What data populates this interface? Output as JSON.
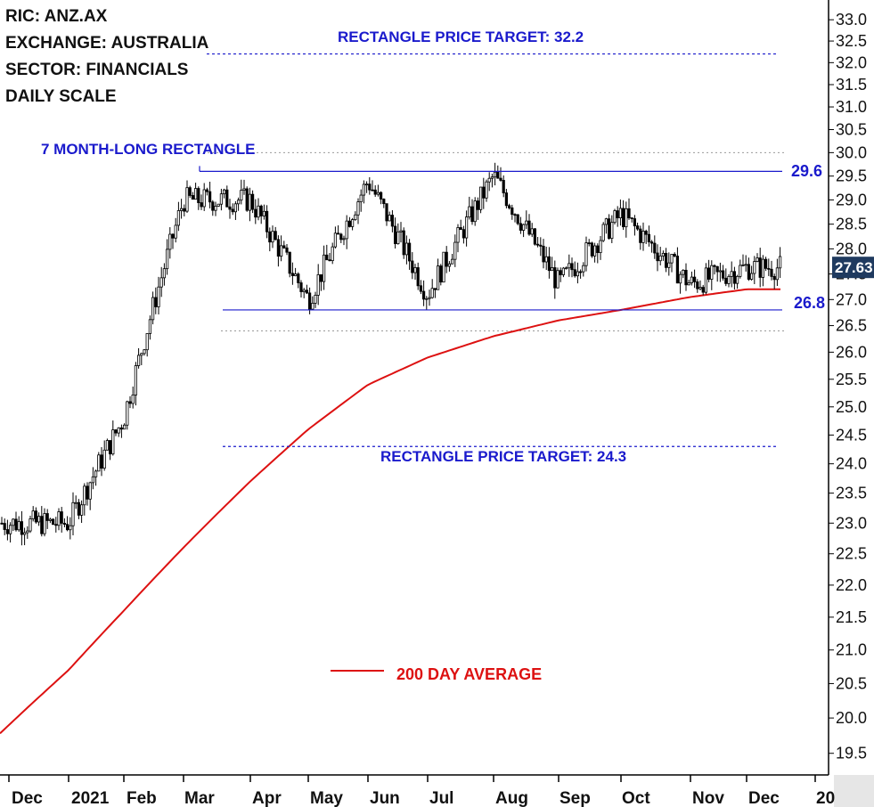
{
  "header": {
    "ric": "RIC: ANZ.AX",
    "exchange": "EXCHANGE: AUSTRALIA",
    "sector": "SECTOR: FINANCIALS",
    "scale": "DAILY SCALE"
  },
  "colors": {
    "accent": "#1a1acc",
    "moving_average": "#dd1111",
    "last_price_bg": "#1f3a5f",
    "candle": "#000000"
  },
  "chart_data": {
    "type": "candlestick",
    "y_axis": {
      "position": "right",
      "min": 19.2,
      "max": 33.3,
      "scale": "log",
      "ticks": [
        "19.5",
        "20.0",
        "20.5",
        "21.0",
        "21.5",
        "22.0",
        "22.5",
        "23.0",
        "23.5",
        "24.0",
        "24.5",
        "25.0",
        "25.5",
        "26.0",
        "26.5",
        "27.0",
        "27.5",
        "28.0",
        "28.5",
        "29.0",
        "29.5",
        "30.0",
        "30.5",
        "31.0",
        "31.5",
        "32.0",
        "32.5",
        "33.0"
      ]
    },
    "x_axis": {
      "labels": [
        "Dec",
        "2021",
        "Feb",
        "Mar",
        "Apr",
        "May",
        "Jun",
        "Jul",
        "Aug",
        "Sep",
        "Oct",
        "Nov",
        "Dec",
        "20"
      ]
    },
    "last_price": "27.63",
    "rectangle": {
      "label": "7 MONTH-LONG RECTANGLE",
      "upper": 29.6,
      "lower": 26.8,
      "upper_label": "29.6",
      "lower_label": "26.8"
    },
    "targets": [
      {
        "label": "RECTANGLE PRICE TARGET: 32.2",
        "value": 32.2
      },
      {
        "label": "RECTANGLE PRICE TARGET: 24.3",
        "value": 24.3
      }
    ],
    "guides": [
      30.0,
      26.4
    ],
    "moving_average": {
      "label": "200 DAY  AVERAGE",
      "points": [
        [
          "Dec",
          19.9
        ],
        [
          "2021",
          20.7
        ],
        [
          "Feb",
          21.6
        ],
        [
          "Mar",
          22.6
        ],
        [
          "Apr",
          23.7
        ],
        [
          "May",
          24.6
        ],
        [
          "Jun",
          25.4
        ],
        [
          "Jul",
          25.9
        ],
        [
          "Aug",
          26.3
        ],
        [
          "Sep",
          26.6
        ],
        [
          "Oct",
          26.8
        ],
        [
          "Nov",
          27.05
        ],
        [
          "Dec",
          27.2
        ]
      ]
    },
    "price_path": [
      [
        "Dec",
        23.0
      ],
      [
        "2021",
        23.0
      ],
      [
        "Feb",
        24.8
      ],
      [
        "Mar",
        29.0
      ],
      [
        "Apr",
        29.0
      ],
      [
        "May",
        27.0
      ],
      [
        "Jun",
        29.4
      ],
      [
        "Jul",
        27.1
      ],
      [
        "Aug",
        29.5
      ],
      [
        "Sep",
        27.3
      ],
      [
        "Oct",
        28.7
      ],
      [
        "Nov",
        27.3
      ],
      [
        "Dec",
        27.63
      ]
    ]
  }
}
